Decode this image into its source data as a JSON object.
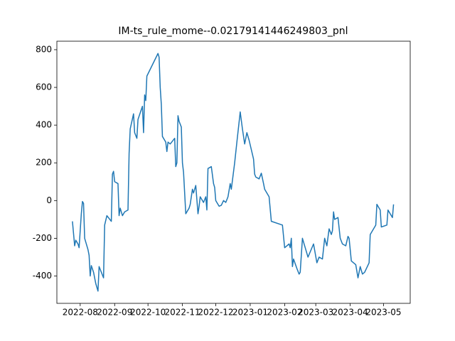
{
  "chart_data": {
    "type": "line",
    "title": "IM-ts_rule_mome--0.02179141446249803_pnl",
    "color": "#1f77b4",
    "x": [
      -7,
      -5,
      -4,
      -2,
      -1,
      1,
      2,
      3,
      4,
      7,
      8,
      9,
      10,
      12,
      14,
      16,
      17,
      21,
      22,
      24,
      28,
      29,
      30,
      31,
      34,
      35,
      36,
      38,
      40,
      43,
      44,
      45,
      48,
      49,
      51,
      52,
      56,
      57,
      58,
      59,
      60,
      70,
      71,
      72,
      73,
      74,
      77,
      78,
      79,
      81,
      85,
      86,
      87,
      88,
      89,
      91,
      92,
      93,
      95,
      98,
      99,
      101,
      102,
      104,
      106,
      107,
      108,
      111,
      113,
      114,
      115,
      118,
      120,
      121,
      122,
      125,
      127,
      129,
      131,
      133,
      135,
      136,
      139,
      141,
      144,
      146,
      148,
      150,
      152,
      154,
      156,
      157,
      158,
      161,
      163,
      165,
      166,
      170,
      172,
      182,
      184,
      188,
      189,
      190,
      191,
      192,
      195,
      197,
      198,
      200,
      203,
      205,
      210,
      213,
      215,
      218,
      220,
      222,
      224,
      226,
      227,
      228,
      229,
      232,
      234,
      236,
      239,
      241,
      242,
      244,
      246,
      248,
      250,
      252,
      254,
      256,
      260,
      261,
      266,
      267,
      270,
      271,
      276,
      277,
      281,
      282
    ],
    "values": [
      -110,
      -240,
      -210,
      -230,
      -250,
      -70,
      -5,
      -15,
      -200,
      -260,
      -290,
      -400,
      -345,
      -380,
      -440,
      -480,
      -350,
      -410,
      -130,
      -80,
      -110,
      140,
      155,
      100,
      90,
      -80,
      -40,
      -80,
      -60,
      -50,
      250,
      380,
      460,
      360,
      330,
      430,
      500,
      360,
      560,
      530,
      660,
      780,
      760,
      600,
      510,
      340,
      310,
      260,
      310,
      300,
      330,
      180,
      200,
      450,
      420,
      390,
      200,
      150,
      -70,
      -40,
      -20,
      60,
      40,
      80,
      -70,
      -30,
      20,
      -10,
      20,
      -50,
      170,
      180,
      90,
      70,
      0,
      -30,
      -25,
      0,
      -10,
      20,
      90,
      60,
      200,
      310,
      470,
      380,
      300,
      360,
      320,
      270,
      220,
      140,
      125,
      115,
      145,
      90,
      60,
      20,
      -110,
      -130,
      -250,
      -230,
      -250,
      -200,
      -350,
      -310,
      -360,
      -390,
      -380,
      -200,
      -260,
      -300,
      -230,
      -330,
      -300,
      -310,
      -200,
      -240,
      -150,
      -180,
      -160,
      -60,
      -100,
      -90,
      -200,
      -230,
      -240,
      -190,
      -200,
      -320,
      -330,
      -340,
      -410,
      -350,
      -390,
      -380,
      -330,
      -180,
      -130,
      -20,
      -50,
      -140,
      -130,
      -50,
      -90,
      -20
    ],
    "xlim": [
      -21,
      297
    ],
    "xticks": [
      {
        "value": 0,
        "label": "2022-08"
      },
      {
        "value": 31,
        "label": "2022-09"
      },
      {
        "value": 61,
        "label": "2022-10"
      },
      {
        "value": 92,
        "label": "2022-11"
      },
      {
        "value": 122,
        "label": "2022-12"
      },
      {
        "value": 153,
        "label": "2023-01"
      },
      {
        "value": 184,
        "label": "2023-02"
      },
      {
        "value": 212,
        "label": "2023-03"
      },
      {
        "value": 243,
        "label": "2023-04"
      },
      {
        "value": 273,
        "label": "2023-05"
      }
    ],
    "ylim": [
      -545,
      845
    ],
    "yticks": [
      -400,
      -200,
      0,
      200,
      400,
      600,
      800
    ]
  }
}
